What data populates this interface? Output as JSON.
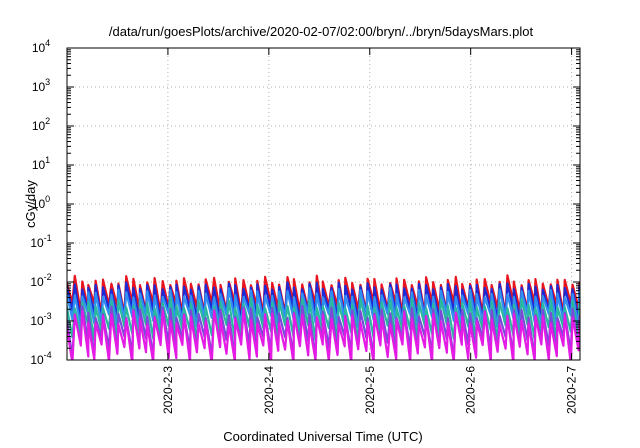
{
  "chart_data": {
    "type": "line",
    "title": "/data/run/goesPlots/archive/2020-02-07/02:00/bryn/../bryn/5daysMars.plot",
    "xlabel": "Coordinated Universal Time (UTC)",
    "ylabel": "cGy/day",
    "yscale": "log",
    "ylim": [
      0.0001,
      10000
    ],
    "yticks": [
      {
        "base": "10",
        "exp": "-4"
      },
      {
        "base": "10",
        "exp": "-3"
      },
      {
        "base": "10",
        "exp": "-2"
      },
      {
        "base": "10",
        "exp": "-1"
      },
      {
        "base": "10",
        "exp": "0"
      },
      {
        "base": "10",
        "exp": "1"
      },
      {
        "base": "10",
        "exp": "2"
      },
      {
        "base": "10",
        "exp": "3"
      },
      {
        "base": "10",
        "exp": "4"
      }
    ],
    "xlim": [
      "2020-02-02 00:00",
      "2020-02-07 02:00"
    ],
    "xticks": [
      "2020-2-3",
      "2020-2-4",
      "2020-2-5",
      "2020-2-6",
      "2020-2-7"
    ],
    "grid": true,
    "legend": "none",
    "series": [
      {
        "color": "#e8141e",
        "peak_range": [
          0.006,
          0.015
        ],
        "trough_range": [
          0.0015,
          0.003
        ]
      },
      {
        "color": "#1d2bd6",
        "peak_range": [
          0.005,
          0.01
        ],
        "trough_range": [
          0.001,
          0.002
        ]
      },
      {
        "color": "#2f8ff2",
        "peak_range": [
          0.003,
          0.007
        ],
        "trough_range": [
          0.0007,
          0.0015
        ]
      },
      {
        "color": "#2bb8a0",
        "peak_range": [
          0.0015,
          0.004
        ],
        "trough_range": [
          0.0003,
          0.0008
        ]
      },
      {
        "color": "#7a4bd9",
        "peak_range": [
          0.0008,
          0.0025
        ],
        "trough_range": [
          0.00012,
          0.0004
        ]
      },
      {
        "color": "#e41be4",
        "peak_range": [
          0.0005,
          0.002
        ],
        "trough_range": [
          8e-05,
          0.00025
        ]
      }
    ]
  }
}
